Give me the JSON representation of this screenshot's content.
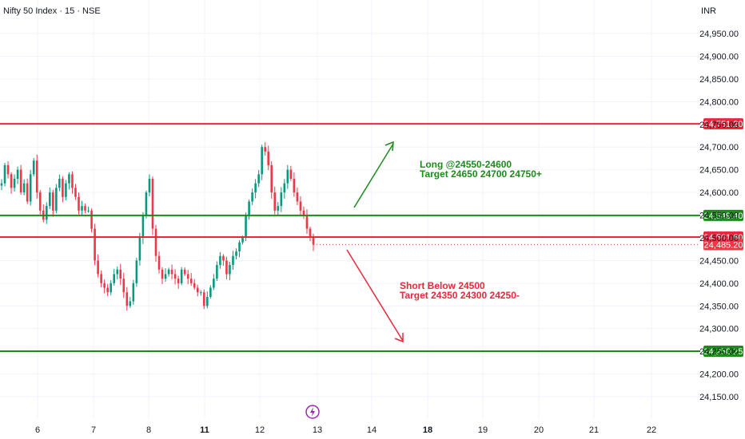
{
  "header": {
    "symbol_title": "Nifty 50 Index · 15 · NSE",
    "currency": "INR"
  },
  "colors": {
    "up": "#089981",
    "down": "#f23645",
    "green_line": "#1e8a1e",
    "red_line": "#e8283c",
    "grid": "#f0f3fa",
    "event_icon": "#9c27b0"
  },
  "icons": {
    "event": "lightning-icon"
  },
  "annotations": {
    "long": {
      "line1": "Long @24550-24600",
      "line2": "Target 24650 24700 24750+"
    },
    "short": {
      "line1": "Short Below 24500",
      "line2": "Target 24350 24300 24250-"
    }
  },
  "chart_data": {
    "type": "candlestick",
    "ylim": [
      24140,
      25000
    ],
    "y_ticks": [
      24150,
      24200,
      24250,
      24300,
      24350,
      24400,
      24450,
      24500,
      24550,
      24600,
      24650,
      24700,
      24750,
      24800,
      24850,
      24900,
      24950
    ],
    "y_tick_labels": [
      "24,150.00",
      "24,200.00",
      "24,250.00",
      "24,300.00",
      "24,350.00",
      "24,400.00",
      "24,450.00",
      "24,500.00",
      "24,550.00",
      "24,600.00",
      "24,650.00",
      "24,700.00",
      "24,750.00",
      "24,800.00",
      "24,850.00",
      "24,900.00",
      "24,950.00"
    ],
    "x_ticks": [
      {
        "label": "6",
        "bold": false
      },
      {
        "label": "7",
        "bold": false
      },
      {
        "label": "8",
        "bold": false
      },
      {
        "label": "11",
        "bold": true
      },
      {
        "label": "12",
        "bold": false
      },
      {
        "label": "13",
        "bold": false
      },
      {
        "label": "14",
        "bold": false
      },
      {
        "label": "18",
        "bold": true
      },
      {
        "label": "19",
        "bold": false
      },
      {
        "label": "20",
        "bold": false
      },
      {
        "label": "21",
        "bold": false
      },
      {
        "label": "22",
        "bold": false
      }
    ],
    "horizontal_levels": [
      {
        "value": 24751.2,
        "label": "24,751.20",
        "color": "#e8283c"
      },
      {
        "value": 24549.4,
        "label": "24,549.40",
        "color": "#1e8a1e"
      },
      {
        "value": 24501.6,
        "label": "24,501.60",
        "color": "#e8283c"
      },
      {
        "value": 24250.25,
        "label": "24,250.25",
        "color": "#1e8a1e"
      }
    ],
    "last_price": {
      "value": 24485.2,
      "label": "24,485.20"
    },
    "close_path": [
      24620,
      24660,
      24640,
      24610,
      24630,
      24650,
      24600,
      24620,
      24580,
      24640,
      24670,
      24600,
      24560,
      24540,
      24570,
      24600,
      24560,
      24610,
      24630,
      24590,
      24620,
      24640,
      24610,
      24590,
      24560,
      24570,
      24560,
      24560,
      24520,
      24450,
      24420,
      24400,
      24390,
      24380,
      24400,
      24420,
      24430,
      24410,
      24380,
      24350,
      24360,
      24400,
      24450,
      24500,
      24550,
      24600,
      24630,
      24520,
      24460,
      24430,
      24410,
      24420,
      24430,
      24420,
      24410,
      24400,
      24430,
      24420,
      24410,
      24400,
      24390,
      24380,
      24380,
      24350,
      24370,
      24390,
      24410,
      24440,
      24460,
      24450,
      24420,
      24440,
      24460,
      24470,
      24490,
      24500,
      24550,
      24580,
      24600,
      24620,
      24640,
      24700,
      24690,
      24660,
      24600,
      24560,
      24570,
      24600,
      24620,
      24650,
      24630,
      24600,
      24580,
      24560,
      24550,
      24520,
      24500,
      24485
    ]
  }
}
